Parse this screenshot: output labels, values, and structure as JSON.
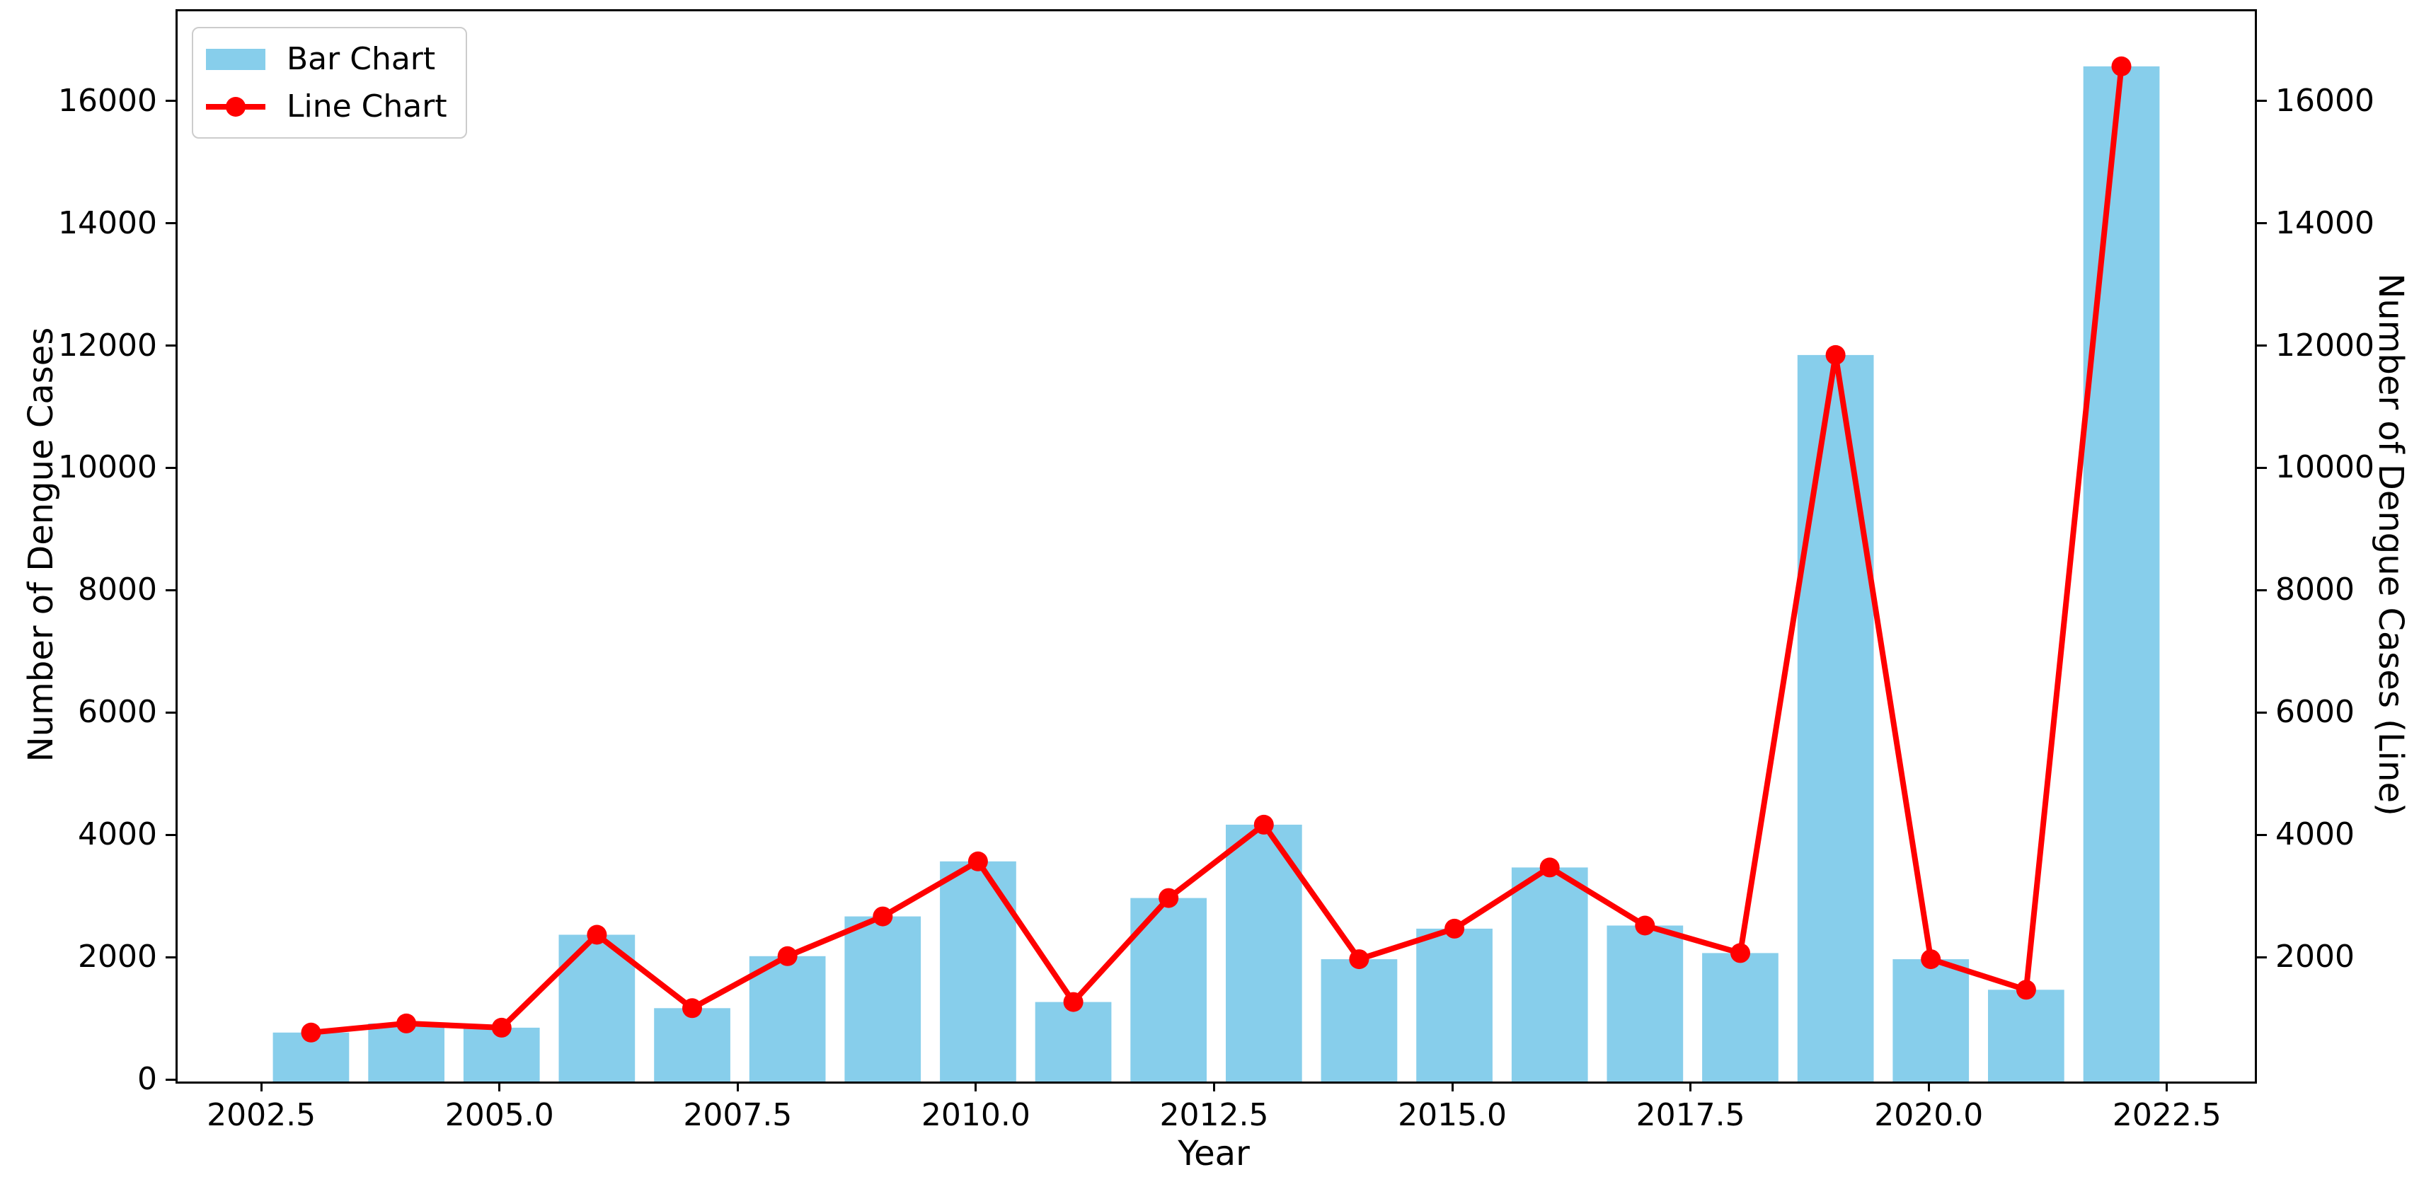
{
  "chart_data": {
    "type": "bar",
    "x": [
      2003,
      2004,
      2005,
      2006,
      2007,
      2008,
      2009,
      2010,
      2011,
      2012,
      2013,
      2014,
      2015,
      2016,
      2017,
      2018,
      2019,
      2020,
      2021,
      2022
    ],
    "series": [
      {
        "name": "Bar Chart",
        "type": "bar",
        "color": "#87CEEB",
        "axis": "left",
        "values": [
          800,
          950,
          880,
          2400,
          1200,
          2050,
          2700,
          3600,
          1300,
          3000,
          4200,
          2000,
          2500,
          3500,
          2550,
          2100,
          11880,
          2000,
          1500,
          16600
        ]
      },
      {
        "name": "Line Chart",
        "type": "line",
        "color": "#FF0000",
        "axis": "right",
        "values": [
          800,
          950,
          880,
          2400,
          1200,
          2050,
          2700,
          3600,
          1300,
          3000,
          4200,
          2000,
          2500,
          3500,
          2550,
          2100,
          11880,
          2000,
          1500,
          16600
        ]
      }
    ],
    "title": "",
    "xlabel": "Year",
    "ylabel_left": "Number of Dengue Cases",
    "ylabel_right": "Number of Dengue Cases (Line)",
    "xlim": [
      2001.6,
      2023.4
    ],
    "ylim": [
      0,
      17500
    ],
    "xticks": [
      2002.5,
      2005.0,
      2007.5,
      2010.0,
      2012.5,
      2015.0,
      2017.5,
      2020.0,
      2022.5
    ],
    "yticks_left": [
      0,
      2000,
      4000,
      6000,
      8000,
      10000,
      12000,
      14000,
      16000
    ],
    "yticks_right": [
      2000,
      4000,
      6000,
      8000,
      10000,
      12000,
      14000,
      16000
    ],
    "bar_width_years": 0.8,
    "grid": false,
    "legend": {
      "position": "upper left",
      "entries": [
        "Bar Chart",
        "Line Chart"
      ]
    }
  },
  "style": {
    "bar_color": "#87CEEB",
    "line_color": "#FF0000",
    "spine_color": "#000000",
    "background": "#ffffff",
    "legend_border": "#cccccc"
  }
}
